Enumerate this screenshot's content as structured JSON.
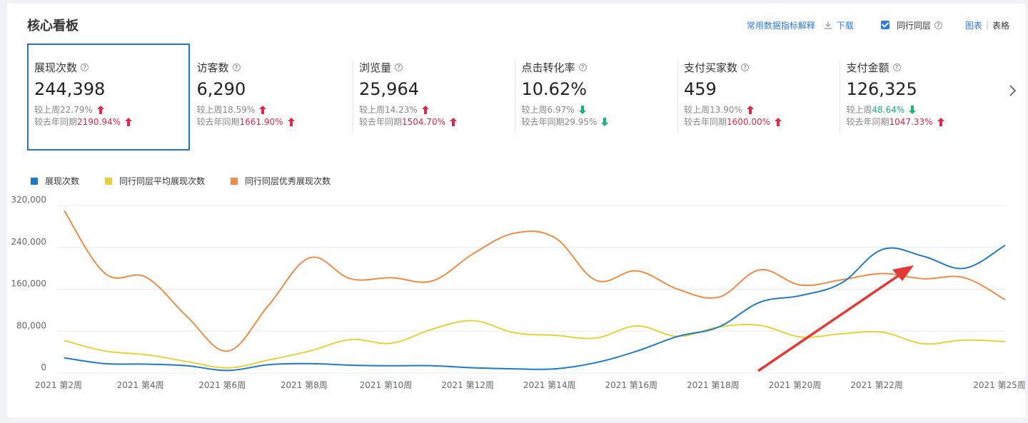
{
  "header": {
    "title": "核心看板",
    "metric_help_link": "常用数据指标解释",
    "download_label": "下载",
    "peer_checkbox_label": "同行同层",
    "peer_checked": true,
    "view_chart_label": "图表",
    "view_separator": "|",
    "view_table_label": "表格"
  },
  "metrics": [
    {
      "label": "展现次数",
      "value": "244,398",
      "wow_label": "较上周",
      "wow_value": "22.79%",
      "wow_dir": "up",
      "yoy_label": "较去年同期",
      "yoy_value": "2190.94%",
      "yoy_dir": "up",
      "selected": true
    },
    {
      "label": "访客数",
      "value": "6,290",
      "wow_label": "较上周",
      "wow_value": "18.59%",
      "wow_dir": "up",
      "yoy_label": "较去年同期",
      "yoy_value": "1661.90%",
      "yoy_dir": "up"
    },
    {
      "label": "浏览量",
      "value": "25,964",
      "wow_label": "较上周",
      "wow_value": "14.23%",
      "wow_dir": "up",
      "yoy_label": "较去年同期",
      "yoy_value": "1504.70%",
      "yoy_dir": "up"
    },
    {
      "label": "点击转化率",
      "value": "10.62%",
      "wow_label": "较上周",
      "wow_value": "6.97%",
      "wow_dir": "down",
      "yoy_label": "较去年同期",
      "yoy_value": "29.95%",
      "yoy_dir": "down"
    },
    {
      "label": "支付买家数",
      "value": "459",
      "wow_label": "较上周",
      "wow_value": "13.90%",
      "wow_dir": "up",
      "yoy_label": "较去年同期",
      "yoy_value": "1600.00%",
      "yoy_dir": "up"
    },
    {
      "label": "支付金额",
      "value": "126,325",
      "wow_label": "较上周",
      "wow_value": "48.64%",
      "wow_dir": "down",
      "yoy_label": "较去年同期",
      "yoy_value": "1047.33%",
      "yoy_dir": "up"
    }
  ],
  "colors": {
    "accent": "#2c7be5",
    "up": "#e0294a",
    "down": "#14b679",
    "annotation_arrow": "#e53935"
  },
  "chart_data": {
    "type": "line",
    "x": [
      "2021 第2周",
      "2021 第3周",
      "2021 第4周",
      "2021 第5周",
      "2021 第6周",
      "2021 第7周",
      "2021 第8周",
      "2021 第9周",
      "2021 第10周",
      "2021 第11周",
      "2021 第12周",
      "2021 第13周",
      "2021 第14周",
      "2021 第15周",
      "2021 第16周",
      "2021 第17周",
      "2021 第18周",
      "2021 第19周",
      "2021 第20周",
      "2021 第21周",
      "2021 第22周",
      "2021 第23周",
      "2021 第24周",
      "2021 第25周"
    ],
    "x_tick_labels": [
      "2021 第2周",
      "2021 第4周",
      "2021 第6周",
      "2021 第8周",
      "2021 第10周",
      "2021 第12周",
      "2021 第14周",
      "2021 第16周",
      "2021 第18周",
      "2021 第20周",
      "2021 第22周",
      "2021 第25周"
    ],
    "y_ticks": [
      "320,000",
      "240,000",
      "160,000",
      "80,000",
      "0"
    ],
    "ylim": [
      0,
      320000
    ],
    "grid": true,
    "legend_position": "top-left",
    "series": [
      {
        "name": "展现次数",
        "color": "#1f7ac7",
        "values": [
          29000,
          18000,
          17000,
          14000,
          5000,
          16000,
          18000,
          15000,
          14000,
          14000,
          10000,
          8000,
          8000,
          20000,
          42000,
          70000,
          88000,
          135000,
          148000,
          172000,
          236000,
          223000,
          200000,
          244000
        ]
      },
      {
        "name": "同行同层平均展现次数",
        "color": "#e8d23a",
        "values": [
          62000,
          42000,
          35000,
          22000,
          10000,
          25000,
          42000,
          64000,
          57000,
          84000,
          100000,
          77000,
          72000,
          67000,
          90000,
          70000,
          88000,
          91000,
          69000,
          75000,
          78000,
          56000,
          63000,
          60000
        ]
      },
      {
        "name": "同行同层优秀展现次数",
        "color": "#ef8c46",
        "values": [
          310000,
          190000,
          183000,
          108000,
          42000,
          130000,
          220000,
          180000,
          182000,
          176000,
          228000,
          267000,
          258000,
          177000,
          195000,
          160000,
          145000,
          197000,
          168000,
          178000,
          190000,
          180000,
          182000,
          140000
        ]
      }
    ]
  }
}
